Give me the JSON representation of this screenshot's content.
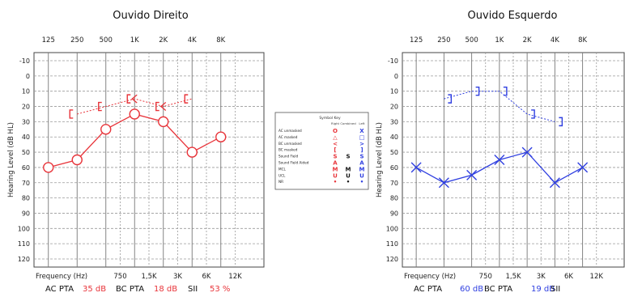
{
  "chart_data": [
    {
      "type": "line",
      "title": "Ouvido Direito",
      "ylabel": "Hearing Level (dB HL)",
      "xlabel": "Frequency (Hz)",
      "top_ticks": [
        "125",
        "250",
        "500",
        "1K",
        "2K",
        "4K",
        "8K"
      ],
      "bottom_ticks": [
        "750",
        "1,5K",
        "3K",
        "6K",
        "12K"
      ],
      "y_ticks": [
        "-10",
        "0",
        "10",
        "20",
        "30",
        "40",
        "50",
        "60",
        "70",
        "80",
        "90",
        "100",
        "110",
        "120"
      ],
      "ylim": [
        -10,
        120
      ],
      "y_inverted": true,
      "grid": true,
      "color": "#e8343a",
      "series": [
        {
          "name": "AC unmasked",
          "symbol": "circle",
          "x": [
            125,
            250,
            500,
            1000,
            2000,
            4000,
            8000
          ],
          "values": [
            60,
            55,
            35,
            25,
            30,
            50,
            40
          ]
        },
        {
          "name": "BC masked",
          "symbol": "bracket-open",
          "x": [
            250,
            500,
            1000,
            2000,
            4000
          ],
          "values": [
            25,
            20,
            15,
            20,
            15
          ]
        }
      ],
      "stats": [
        {
          "label": "AC PTA",
          "value": "35 dB"
        },
        {
          "label": "BC PTA",
          "value": "18 dB"
        },
        {
          "label": "SII",
          "value": "53 %"
        }
      ]
    },
    {
      "type": "line",
      "title": "Ouvido Esquerdo",
      "ylabel": "Hearing Level (dB HL)",
      "xlabel": "Frequency (Hz)",
      "top_ticks": [
        "125",
        "250",
        "500",
        "1K",
        "2K",
        "4K",
        "8K"
      ],
      "bottom_ticks": [
        "750",
        "1,5K",
        "3K",
        "6K",
        "12K"
      ],
      "y_ticks": [
        "-10",
        "0",
        "10",
        "20",
        "30",
        "40",
        "50",
        "60",
        "70",
        "80",
        "90",
        "100",
        "110",
        "120"
      ],
      "ylim": [
        -10,
        120
      ],
      "y_inverted": true,
      "grid": true,
      "color": "#2f3fe0",
      "series": [
        {
          "name": "AC unmasked",
          "symbol": "cross",
          "x": [
            125,
            250,
            500,
            1000,
            2000,
            4000,
            8000
          ],
          "values": [
            60,
            70,
            65,
            55,
            50,
            70,
            60
          ]
        },
        {
          "name": "BC masked",
          "symbol": "bracket-close",
          "x": [
            250,
            500,
            1000,
            2000,
            4000
          ],
          "values": [
            15,
            10,
            10,
            25,
            30
          ]
        }
      ],
      "stats": [
        {
          "label": "AC PTA",
          "value": "60 dB"
        },
        {
          "label": "BC PTA",
          "value": "19 dB"
        },
        {
          "label": "SII",
          "value": ""
        }
      ]
    }
  ],
  "legend": {
    "title": "Symbol Key",
    "columns": [
      "Right",
      "Combined",
      "Left"
    ],
    "rows": [
      {
        "label": "AC unmasked",
        "right": "O",
        "combined": "",
        "left": "X"
      },
      {
        "label": "AC masked",
        "right": "△",
        "combined": "",
        "left": "□"
      },
      {
        "label": "BC unmasked",
        "right": "<",
        "combined": "",
        "left": ">"
      },
      {
        "label": "BC masked",
        "right": "[",
        "combined": "",
        "left": "]"
      },
      {
        "label": "Sound Field",
        "right": "S",
        "combined": "S",
        "left": "S"
      },
      {
        "label": "Sound Field Aided",
        "right": "A",
        "combined": "",
        "left": "A"
      },
      {
        "label": "MCL",
        "right": "M",
        "combined": "M",
        "left": "M"
      },
      {
        "label": "UCL",
        "right": "U",
        "combined": "U",
        "left": "U"
      },
      {
        "label": "NR",
        "right": "•",
        "combined": "•",
        "left": "•"
      }
    ]
  },
  "colors": {
    "right": "#e8343a",
    "left": "#2f3fe0",
    "combined": "#111111",
    "grid": "#9a9a9a"
  }
}
